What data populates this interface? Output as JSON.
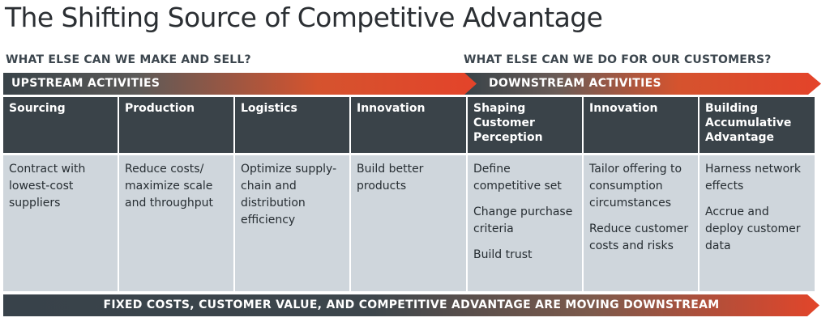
{
  "title": "The Shifting Source of Competitive Advantage",
  "upstream_question": "WHAT ELSE CAN WE MAKE AND SELL?",
  "downstream_question": "WHAT ELSE CAN WE DO FOR OUR CUSTOMERS?",
  "upstream_label": "UPSTREAM ACTIVITIES",
  "downstream_label": "DOWNSTREAM ACTIVITIES",
  "columns": [
    {
      "heading": "Sourcing",
      "items": [
        "Contract with lowest-cost suppliers"
      ]
    },
    {
      "heading": "Production",
      "items": [
        "Reduce costs/ maximize scale and throughput"
      ]
    },
    {
      "heading": "Logistics",
      "items": [
        "Optimize supply-chain and distribution efficiency"
      ]
    },
    {
      "heading": "Innovation",
      "items": [
        "Build better products"
      ]
    },
    {
      "heading": "Shaping Customer Perception",
      "items": [
        "Define competitive set",
        "Change purchase criteria",
        "Build trust"
      ]
    },
    {
      "heading": "Innovation",
      "items": [
        "Tailor offering to consumption circumstances",
        "Reduce customer costs and risks"
      ]
    },
    {
      "heading": "Building Accumulative Advantage",
      "items": [
        "Harness network effects",
        "Accrue and deploy customer data"
      ]
    }
  ],
  "footer": "FIXED COSTS, CUSTOMER VALUE, AND COMPETITIVE ADVANTAGE ARE MOVING DOWNSTREAM",
  "colors": {
    "header_dark": "#3a4349",
    "cell_light": "#cfd6dc",
    "accent_orange": "#e4432a"
  }
}
